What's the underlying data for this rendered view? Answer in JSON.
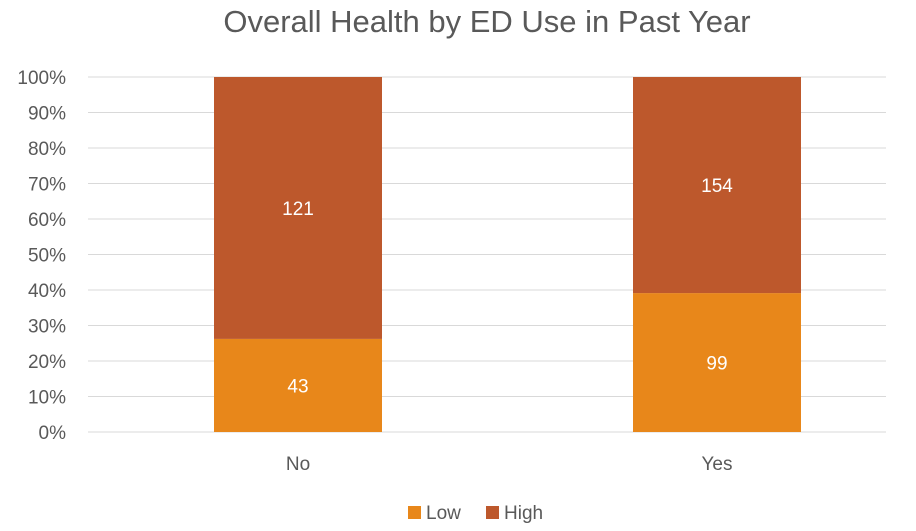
{
  "chart_data": {
    "type": "bar",
    "stacked": "percent",
    "title": "Overall Health by ED Use in Past Year",
    "xlabel": "",
    "ylabel": "",
    "categories": [
      "No",
      "Yes"
    ],
    "series": [
      {
        "name": "Low",
        "values": [
          43,
          99
        ],
        "color": "#E8871A"
      },
      {
        "name": "High",
        "values": [
          121,
          154
        ],
        "color": "#BD582C"
      }
    ],
    "ylim": [
      0,
      100
    ],
    "yticks": [
      "0%",
      "10%",
      "20%",
      "30%",
      "40%",
      "50%",
      "60%",
      "70%",
      "80%",
      "90%",
      "100%"
    ],
    "grid": true,
    "legend": "bottom"
  }
}
